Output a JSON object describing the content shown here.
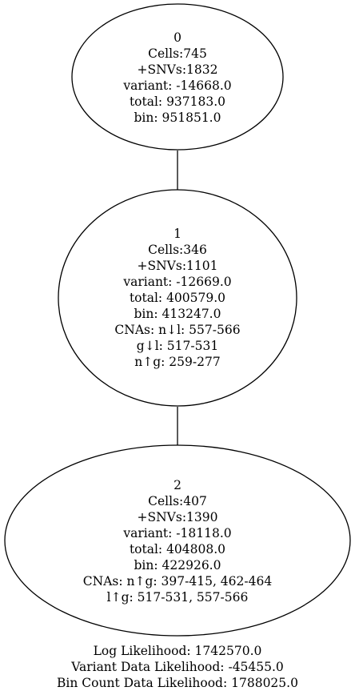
{
  "nodes": [
    {
      "lines": [
        "0",
        "Cells:745",
        "+SNVs:1832",
        "variant: -14668.0",
        "total: 937183.0",
        "bin: 951851.0"
      ]
    },
    {
      "lines": [
        "1",
        "Cells:346",
        "+SNVs:1101",
        "variant: -12669.0",
        "total: 400579.0",
        "bin: 413247.0",
        "CNAs: n↓l: 557-566",
        "g↓l: 517-531",
        "n↑g: 259-277"
      ]
    },
    {
      "lines": [
        "2",
        "Cells:407",
        "+SNVs:1390",
        "variant: -18118.0",
        "total: 404808.0",
        "bin: 422926.0",
        "CNAs: n↑g: 397-415, 462-464",
        "l↑g: 517-531, 557-566"
      ]
    }
  ],
  "edges": [
    {
      "from": 0,
      "to": 1
    },
    {
      "from": 1,
      "to": 2
    }
  ],
  "footer": [
    "Log Likelihood: 1742570.0",
    "Variant Data Likelihood: -45455.0",
    "Bin Count Data Likelihood: 1788025.0"
  ]
}
